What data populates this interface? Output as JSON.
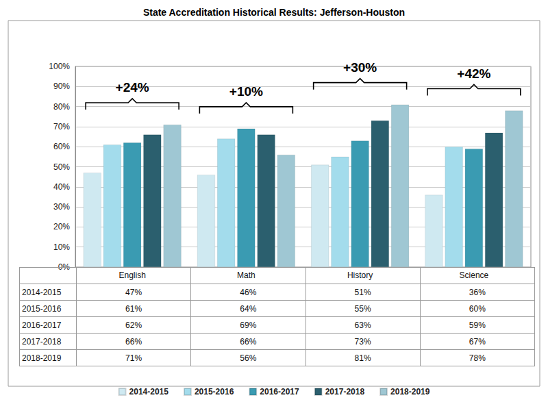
{
  "chart_data": {
    "type": "bar",
    "title": "State Accreditation Historical Results: Jefferson-Houston",
    "categories": [
      "English",
      "Math",
      "History",
      "Science"
    ],
    "series": [
      {
        "name": "2014-2015",
        "color": "#cfe9f1",
        "values": [
          47,
          46,
          51,
          36
        ],
        "value_labels": [
          "47%",
          "46%",
          "51%",
          "36%"
        ]
      },
      {
        "name": "2015-2016",
        "color": "#a3dcec",
        "values": [
          61,
          64,
          55,
          60
        ],
        "value_labels": [
          "61%",
          "64%",
          "55%",
          "60%"
        ]
      },
      {
        "name": "2016-2017",
        "color": "#3a9bb2",
        "values": [
          62,
          69,
          63,
          59
        ],
        "value_labels": [
          "62%",
          "69%",
          "63%",
          "59%"
        ]
      },
      {
        "name": "2017-2018",
        "color": "#2b5f6e",
        "values": [
          66,
          66,
          73,
          67
        ],
        "value_labels": [
          "66%",
          "66%",
          "73%",
          "67%"
        ]
      },
      {
        "name": "2018-2019",
        "color": "#9fc7d3",
        "values": [
          71,
          56,
          81,
          78
        ],
        "value_labels": [
          "71%",
          "56%",
          "81%",
          "78%"
        ]
      }
    ],
    "ylim": [
      0,
      100
    ],
    "yticks": [
      {
        "value": 0,
        "label": "0%"
      },
      {
        "value": 10,
        "label": "10%"
      },
      {
        "value": 20,
        "label": "20%"
      },
      {
        "value": 30,
        "label": "30%"
      },
      {
        "value": 40,
        "label": "40%"
      },
      {
        "value": 50,
        "label": "50%"
      },
      {
        "value": 60,
        "label": "60%"
      },
      {
        "value": 70,
        "label": "70%"
      },
      {
        "value": 80,
        "label": "80%"
      },
      {
        "value": 90,
        "label": "90%"
      },
      {
        "value": 100,
        "label": "100%"
      }
    ],
    "grid": true,
    "legend": "bottom",
    "annotations": [
      {
        "category": "English",
        "text": "+24%"
      },
      {
        "category": "Math",
        "text": "+10%"
      },
      {
        "category": "History",
        "text": "+30%"
      },
      {
        "category": "Science",
        "text": "+42%"
      }
    ]
  }
}
